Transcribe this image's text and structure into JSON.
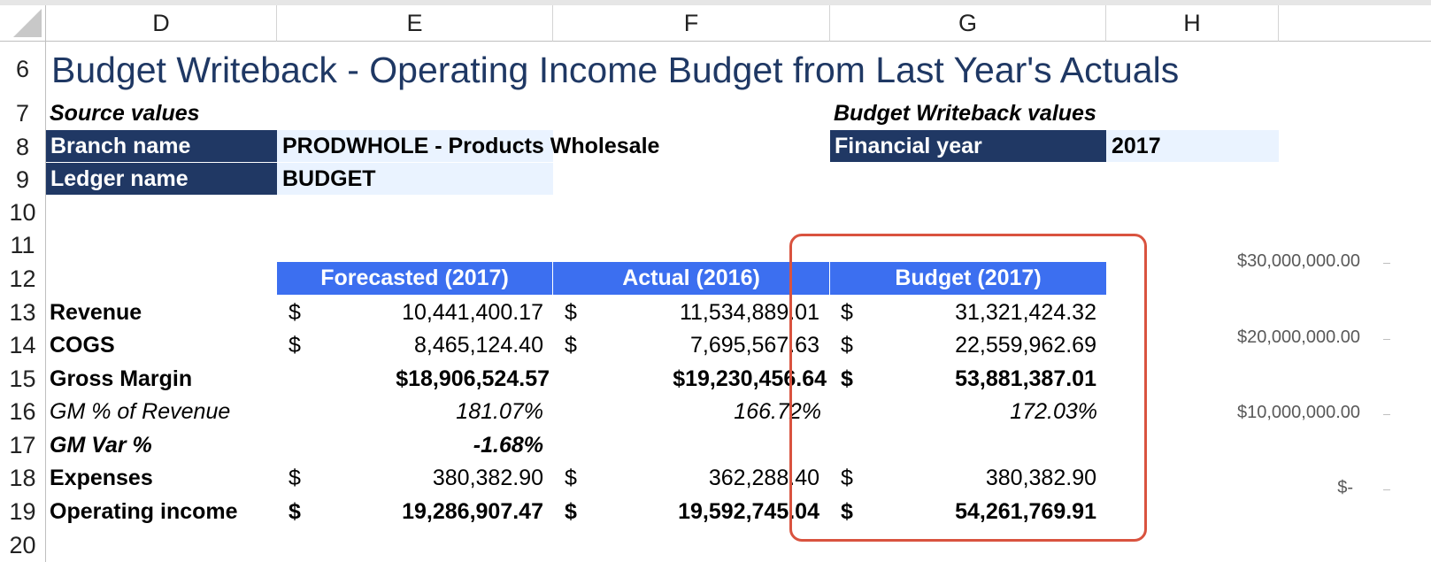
{
  "columns": [
    "D",
    "E",
    "F",
    "G",
    "H"
  ],
  "rows": [
    "6",
    "7",
    "8",
    "9",
    "10",
    "11",
    "12",
    "13",
    "14",
    "15",
    "16",
    "17",
    "18",
    "19",
    "20"
  ],
  "title": "Budget Writeback - Operating Income Budget from Last Year's Actuals",
  "source_values": {
    "heading": "Source values",
    "branch_label": "Branch name",
    "branch_value": "PRODWHOLE - Products Wholesale",
    "ledger_label": "Ledger name",
    "ledger_value": "BUDGET"
  },
  "writeback_values": {
    "heading": "Budget Writeback values",
    "year_label": "Financial year",
    "year_value": "2017"
  },
  "table": {
    "headers": [
      "Forecasted (2017)",
      "Actual (2016)",
      "Budget (2017)"
    ],
    "currency": "$",
    "rows": [
      {
        "label": "Revenue",
        "forecast": "10,441,400.17",
        "actual": "11,534,889.01",
        "budget": "31,321,424.32"
      },
      {
        "label": "COGS",
        "forecast": "8,465,124.40",
        "actual": "7,695,567.63",
        "budget": "22,559,962.69"
      },
      {
        "label": "Gross Margin",
        "forecast": "$18,906,524.57",
        "actual": "$19,230,456.64",
        "budget": "53,881,387.01"
      },
      {
        "label": "GM % of Revenue",
        "forecast": "181.07%",
        "actual": "166.72%",
        "budget": "172.03%"
      },
      {
        "label": "GM Var %",
        "forecast": "-1.68%"
      },
      {
        "label": "Expenses",
        "forecast": "380,382.90",
        "actual": "362,288.40",
        "budget": "380,382.90"
      },
      {
        "label": "Operating income",
        "forecast": "19,286,907.47",
        "actual": "19,592,745.04",
        "budget": "54,261,769.91"
      }
    ]
  },
  "chart_axis": {
    "labels": [
      "$30,000,000.00",
      "$20,000,000.00",
      "$10,000,000.00",
      "$-"
    ]
  }
}
